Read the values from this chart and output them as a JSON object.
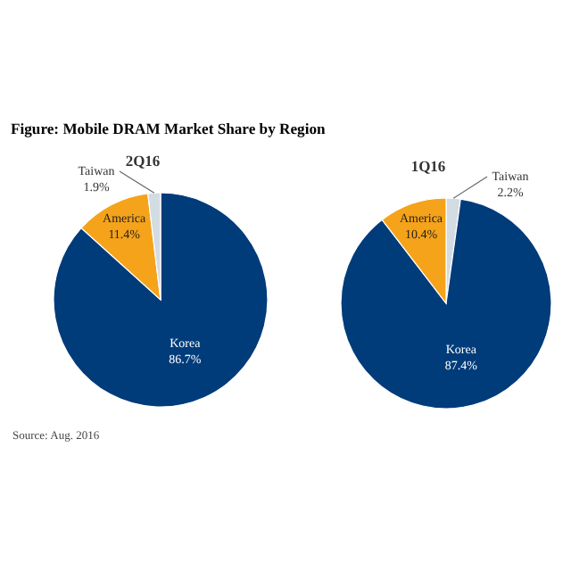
{
  "chart_data": [
    {
      "type": "pie",
      "title": "Figure: Mobile DRAM Market Share by Region",
      "subtitle": "2Q16",
      "categories": [
        "Korea",
        "America",
        "Taiwan"
      ],
      "values": [
        86.7,
        11.4,
        1.9
      ],
      "value_labels": [
        "86.7%",
        "11.4%",
        "1.9%"
      ],
      "colors": [
        "#003b7a",
        "#f5a31a",
        "#d3dbe3"
      ],
      "annotations": [
        "Source: Aug. 2016"
      ]
    },
    {
      "type": "pie",
      "subtitle": "1Q16",
      "categories": [
        "Taiwan",
        "Korea",
        "America"
      ],
      "values": [
        2.2,
        87.4,
        10.4
      ],
      "value_labels": [
        "2.2%",
        "87.4%",
        "10.4%"
      ],
      "colors": [
        "#d3dbe3",
        "#003b7a",
        "#f5a31a"
      ]
    }
  ]
}
